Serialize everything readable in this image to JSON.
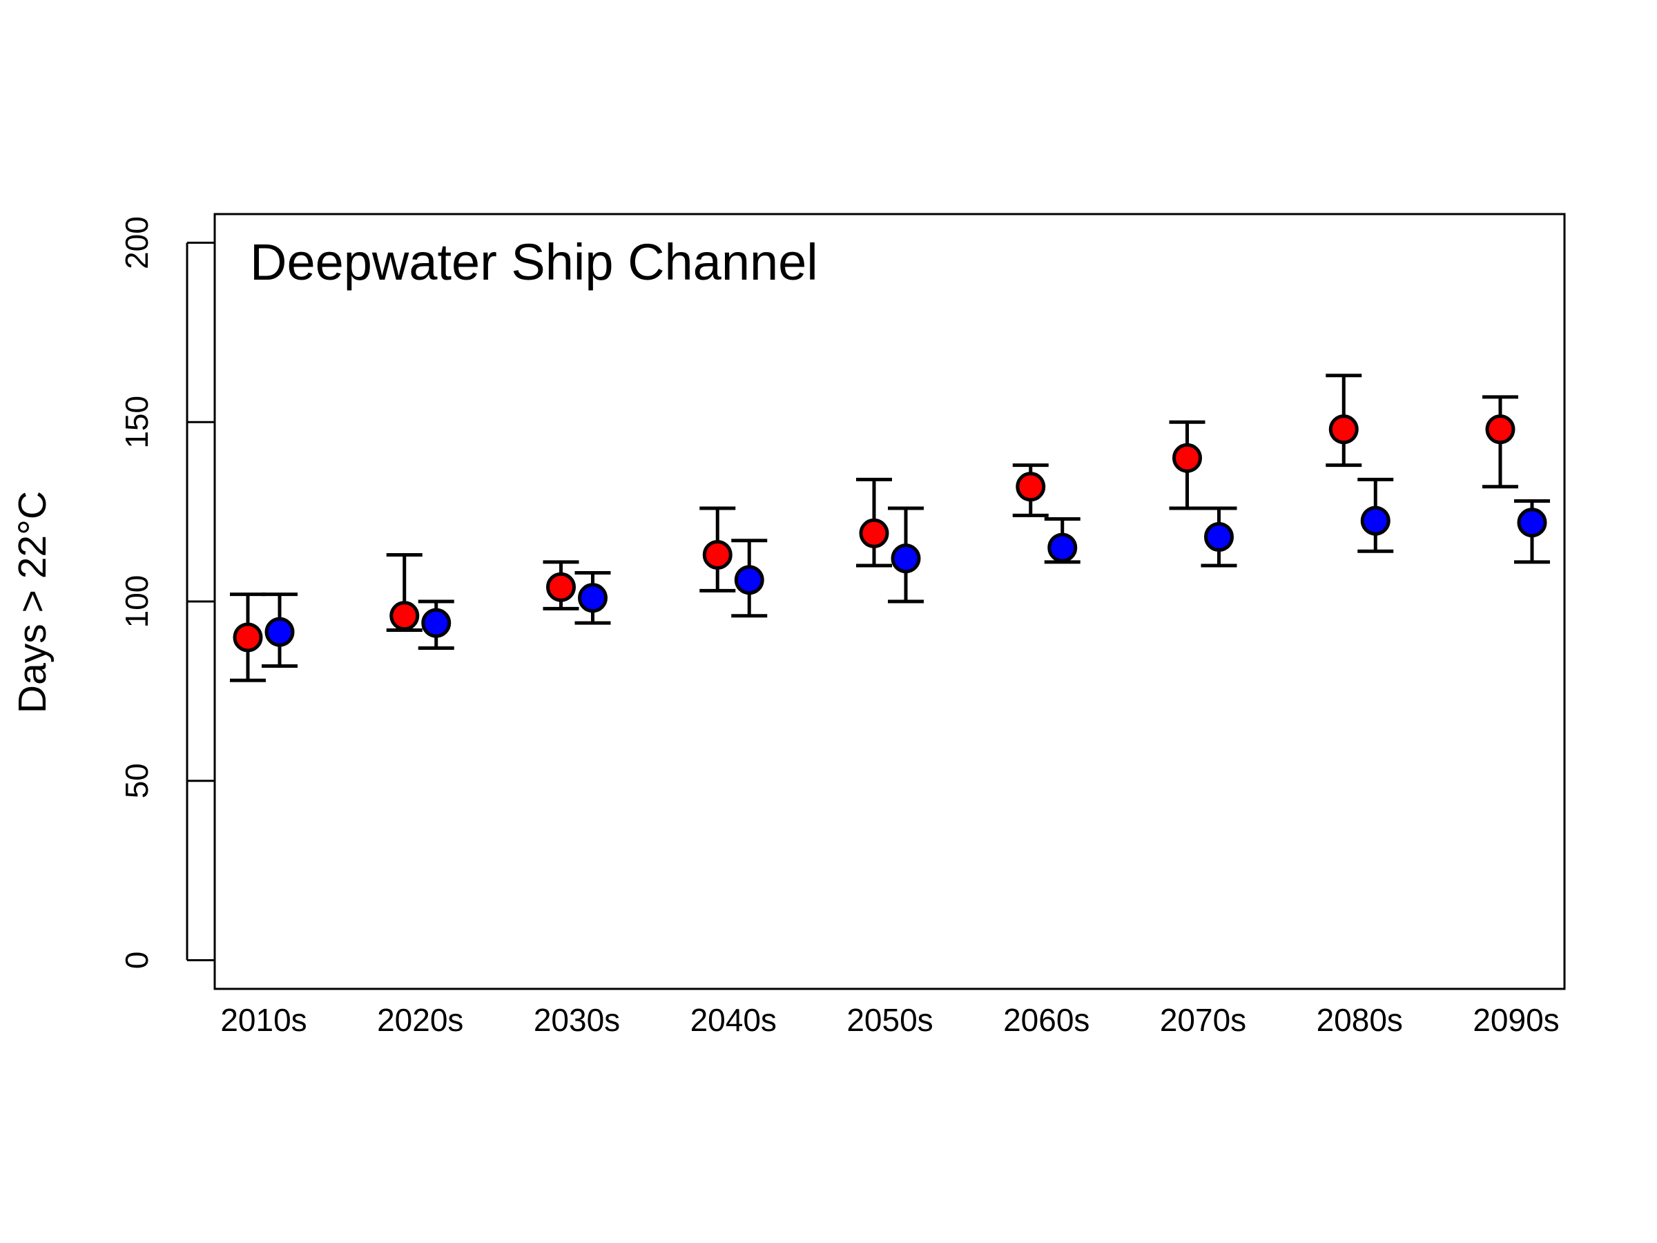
{
  "chart_data": {
    "type": "scatter",
    "title": "Deepwater Ship Channel",
    "xlabel": "",
    "ylabel": "Days > 22°C",
    "ylim": [
      -8,
      208
    ],
    "yticks": [
      0,
      50,
      100,
      150,
      200
    ],
    "categories": [
      "2010s",
      "2020s",
      "2030s",
      "2040s",
      "2050s",
      "2060s",
      "2070s",
      "2080s",
      "2090s"
    ],
    "grid": false,
    "legend": "none",
    "error_bars": true,
    "series": [
      {
        "color": "#ff0000",
        "values": [
          90,
          96,
          104,
          113,
          119,
          132,
          140,
          148,
          148
        ],
        "lower": [
          78,
          92,
          98,
          103,
          110,
          124,
          126,
          138,
          132
        ],
        "upper": [
          102,
          113,
          111,
          126,
          134,
          138,
          150,
          163,
          157
        ]
      },
      {
        "color": "#0000ff",
        "values": [
          91.5,
          94,
          101,
          106,
          112,
          115,
          118,
          122.5,
          122
        ],
        "lower": [
          82,
          87,
          94,
          96,
          100,
          111,
          110,
          114,
          111
        ],
        "upper": [
          102,
          100,
          108,
          117,
          126,
          123,
          126,
          134,
          128
        ]
      }
    ]
  }
}
